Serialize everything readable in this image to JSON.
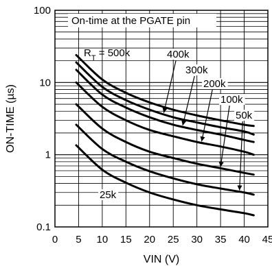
{
  "chart_data": {
    "type": "line",
    "title": "On-time at the PGATE pin",
    "xlabel": "VIN (V)",
    "ylabel": "ON-TIME (µs)",
    "xlim": [
      0,
      45
    ],
    "ylim": [
      0.1,
      100
    ],
    "y_scale": "log",
    "grid": true,
    "x_ticks": [
      "0",
      "5",
      "10",
      "15",
      "20",
      "25",
      "30",
      "35",
      "40",
      "45"
    ],
    "y_ticks": [
      "0.1",
      "1",
      "10",
      "100"
    ],
    "rt_prefix": "R",
    "rt_sub": "T",
    "series": [
      {
        "name": "500k",
        "x": [
          4.5,
          10,
          15,
          20,
          25,
          30,
          35,
          40,
          42
        ],
        "y": [
          24,
          11.0,
          7.2,
          5.3,
          4.2,
          3.5,
          3.0,
          2.6,
          2.5
        ]
      },
      {
        "name": "400k",
        "x": [
          4.5,
          10,
          15,
          20,
          25,
          30,
          35,
          40,
          42
        ],
        "y": [
          19,
          8.7,
          5.7,
          4.2,
          3.3,
          2.8,
          2.4,
          2.1,
          1.9
        ]
      },
      {
        "name": "300k",
        "x": [
          4.5,
          10,
          15,
          20,
          25,
          30,
          35,
          40,
          42
        ],
        "y": [
          15,
          6.8,
          4.5,
          3.3,
          2.6,
          2.2,
          1.9,
          1.6,
          1.5
        ]
      },
      {
        "name": "200k",
        "x": [
          4.5,
          10,
          15,
          20,
          25,
          30,
          35,
          40,
          42
        ],
        "y": [
          10,
          4.6,
          3.0,
          2.2,
          1.8,
          1.5,
          1.3,
          1.1,
          1.0
        ]
      },
      {
        "name": "100k",
        "x": [
          4.5,
          10,
          15,
          20,
          25,
          30,
          35,
          40,
          42
        ],
        "y": [
          5.0,
          2.3,
          1.5,
          1.1,
          0.9,
          0.75,
          0.65,
          0.56,
          0.53
        ]
      },
      {
        "name": "50k",
        "x": [
          4.5,
          10,
          15,
          20,
          25,
          30,
          35,
          40,
          42
        ],
        "y": [
          2.6,
          1.2,
          0.8,
          0.59,
          0.47,
          0.39,
          0.34,
          0.3,
          0.28
        ]
      },
      {
        "name": "25k",
        "x": [
          4.5,
          10,
          15,
          20,
          25,
          30,
          35,
          40,
          42
        ],
        "y": [
          1.35,
          0.62,
          0.41,
          0.3,
          0.24,
          0.2,
          0.175,
          0.155,
          0.145
        ]
      }
    ],
    "annotations": [
      {
        "label": "500k",
        "series": "500k"
      },
      {
        "label": "400k",
        "series": "400k",
        "arrow_to_x": 23
      },
      {
        "label": "300k",
        "series": "300k",
        "arrow_to_x": 27
      },
      {
        "label": "200k",
        "series": "200k",
        "arrow_to_x": 31
      },
      {
        "label": "100k",
        "series": "100k",
        "arrow_to_x": 35
      },
      {
        "label": "50k",
        "series": "50k",
        "arrow_to_x": 39
      },
      {
        "label": "25k",
        "series": "25k"
      }
    ]
  }
}
